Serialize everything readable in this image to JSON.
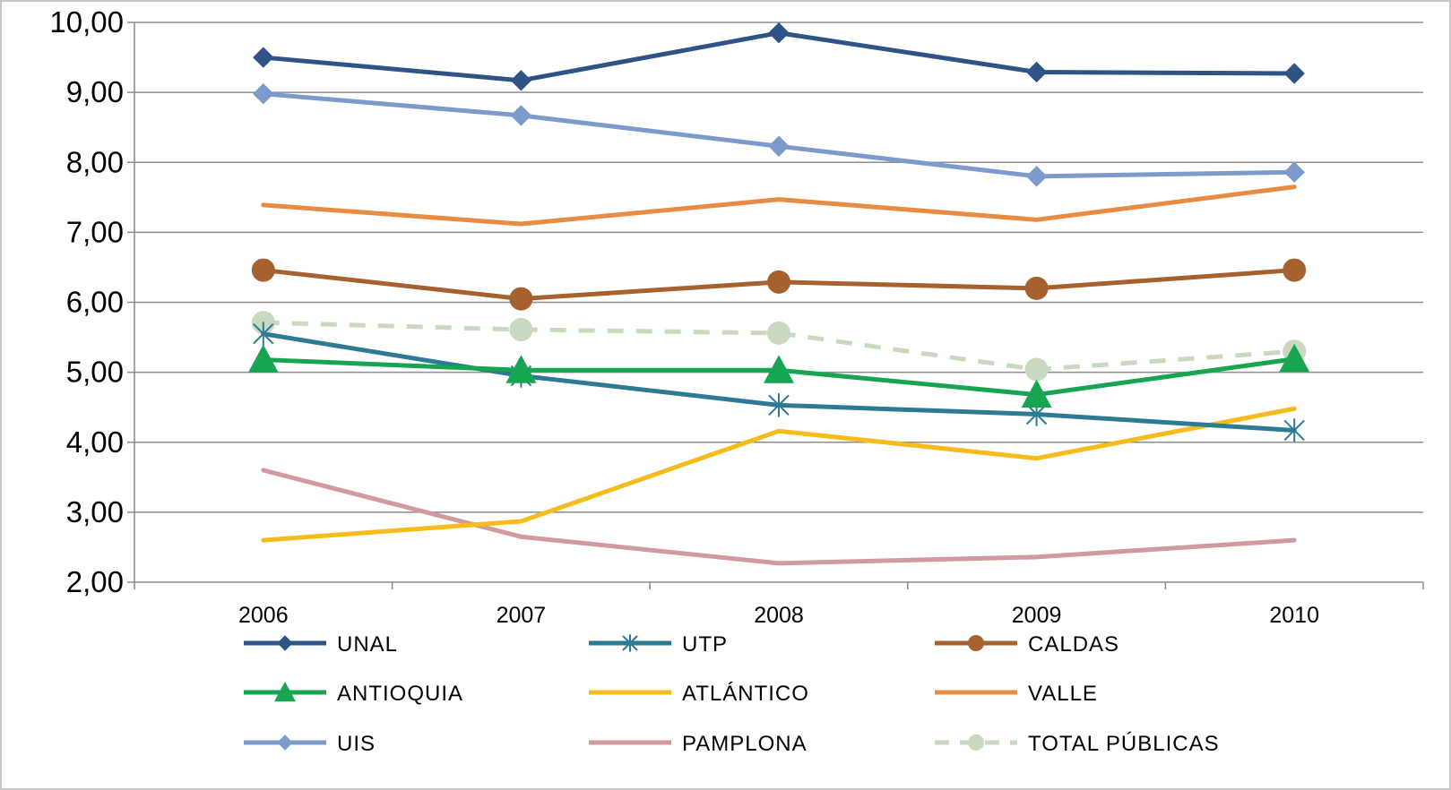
{
  "chart_data": {
    "type": "line",
    "title": "",
    "xlabel": "",
    "ylabel": "",
    "categories": [
      "2006",
      "2007",
      "2008",
      "2009",
      "2010"
    ],
    "ylim": [
      2,
      10
    ],
    "y_ticks": [
      "2,00",
      "3,00",
      "4,00",
      "5,00",
      "6,00",
      "7,00",
      "8,00",
      "9,00",
      "10,00"
    ],
    "grid": "horizontal",
    "legend_position": "bottom",
    "series": [
      {
        "name": "UNAL",
        "values": [
          9.5,
          9.17,
          9.85,
          9.29,
          9.27
        ],
        "color": "#2E5386",
        "marker": "diamond",
        "dashed": false
      },
      {
        "name": "UTP",
        "values": [
          5.55,
          4.95,
          4.53,
          4.4,
          4.17
        ],
        "color": "#2C7A94",
        "marker": "asterisk",
        "dashed": false
      },
      {
        "name": "CALDAS",
        "values": [
          6.46,
          6.05,
          6.29,
          6.2,
          6.46
        ],
        "color": "#A6612E",
        "marker": "circle",
        "dashed": false
      },
      {
        "name": "ANTIOQUIA",
        "values": [
          5.18,
          5.03,
          5.03,
          4.68,
          5.19
        ],
        "color": "#18A551",
        "marker": "triangle",
        "dashed": false
      },
      {
        "name": "ATLÁNTICO",
        "values": [
          2.6,
          2.87,
          4.16,
          3.77,
          4.48
        ],
        "color": "#F5BC1C",
        "marker": "none",
        "dashed": false
      },
      {
        "name": "VALLE",
        "values": [
          7.39,
          7.12,
          7.47,
          7.18,
          7.65
        ],
        "color": "#E98C43",
        "marker": "none",
        "dashed": false
      },
      {
        "name": "UIS",
        "values": [
          8.98,
          8.67,
          8.23,
          7.8,
          7.86
        ],
        "color": "#7D9ACD",
        "marker": "diamond",
        "dashed": false
      },
      {
        "name": "PAMPLONA",
        "values": [
          3.6,
          2.65,
          2.27,
          2.36,
          2.6
        ],
        "color": "#D09A9E",
        "marker": "none",
        "dashed": false
      },
      {
        "name": "TOTAL PÚBLICAS",
        "values": [
          5.71,
          5.61,
          5.56,
          5.04,
          5.3
        ],
        "color": "#C9D9BF",
        "marker": "circle",
        "dashed": true
      }
    ]
  }
}
